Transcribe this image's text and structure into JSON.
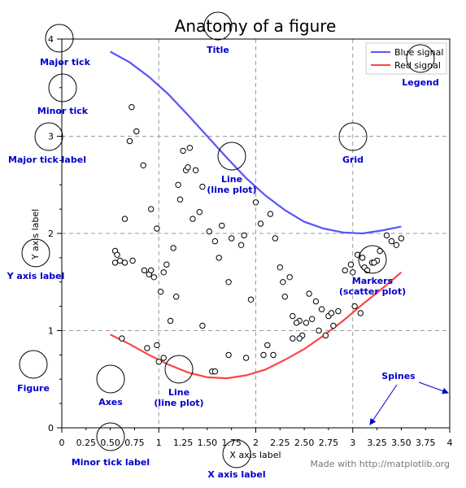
{
  "colors": {
    "blue_signal": "#5555ff",
    "red_signal": "#ff4444",
    "annotation": "#0000cc",
    "grid": "#999999",
    "credit": "#777777"
  },
  "chart_data": {
    "type": "line",
    "title": "Anatomy of a figure",
    "xlabel": "X axis label",
    "ylabel": "Y axis label",
    "xlim": [
      0,
      4
    ],
    "ylim": [
      0,
      4
    ],
    "grid": true,
    "legend_position": "top-right",
    "x_major_ticks": [
      0,
      1,
      2,
      3,
      4
    ],
    "x_major_tick_labels": [
      "0",
      "1",
      "2",
      "3",
      "4"
    ],
    "x_minor_ticks": [
      0.25,
      0.5,
      0.75,
      1.25,
      1.5,
      1.75,
      2.25,
      2.5,
      2.75,
      3.25,
      3.5,
      3.75
    ],
    "x_minor_tick_labels": [
      "0.25",
      "0.50",
      "0.75",
      "1.25",
      "1.50",
      "1.75",
      "2.25",
      "2.50",
      "2.75",
      "3.25",
      "3.50",
      "3.75"
    ],
    "y_major_ticks": [
      0,
      1,
      2,
      3,
      4
    ],
    "y_major_tick_labels": [
      "0",
      "1",
      "2",
      "3",
      "4"
    ],
    "y_minor_ticks": [
      0.25,
      0.5,
      0.75,
      1.25,
      1.5,
      1.75,
      2.25,
      2.5,
      2.75,
      3.25,
      3.5,
      3.75
    ],
    "series": [
      {
        "name": "Blue signal",
        "style": "line",
        "color": "#5555ff",
        "x": [
          0.5,
          0.7,
          0.9,
          1.1,
          1.3,
          1.5,
          1.7,
          1.9,
          2.1,
          2.3,
          2.5,
          2.7,
          2.9,
          3.1,
          3.3,
          3.5
        ],
        "y": [
          3.87,
          3.76,
          3.61,
          3.43,
          3.22,
          3.0,
          2.78,
          2.57,
          2.39,
          2.24,
          2.12,
          2.05,
          2.01,
          2.0,
          2.03,
          2.07
        ]
      },
      {
        "name": "Red signal",
        "style": "line",
        "color": "#ff4444",
        "x": [
          0.5,
          0.7,
          0.9,
          1.1,
          1.3,
          1.5,
          1.7,
          1.9,
          2.1,
          2.3,
          2.5,
          2.7,
          2.9,
          3.1,
          3.3,
          3.5
        ],
        "y": [
          0.96,
          0.86,
          0.75,
          0.65,
          0.57,
          0.52,
          0.51,
          0.54,
          0.6,
          0.7,
          0.81,
          0.95,
          1.1,
          1.27,
          1.43,
          1.6
        ]
      },
      {
        "style": "scatter",
        "x": [
          0.72,
          0.77,
          0.65,
          0.7,
          0.84,
          0.55,
          0.65,
          0.55,
          0.57,
          0.6,
          0.73,
          0.85,
          0.9,
          0.92,
          0.95,
          0.98,
          1.02,
          1.08,
          1.15,
          1.2,
          1.28,
          1.32,
          1.38,
          1.42,
          1.25,
          1.3,
          1.18,
          1.12,
          0.98,
          0.92,
          1.05,
          1.22,
          1.35,
          1.45,
          1.52,
          1.58,
          1.65,
          1.72,
          1.85,
          1.95,
          2.05,
          1.62,
          1.75,
          1.88,
          2.0,
          2.15,
          2.2,
          2.25,
          2.35,
          2.28,
          2.3,
          2.38,
          2.45,
          2.55,
          2.62,
          2.68,
          2.75,
          2.8,
          2.48,
          2.52,
          2.58,
          2.65,
          2.72,
          2.78,
          2.85,
          2.92,
          2.98,
          3.05,
          3.1,
          3.2,
          3.25,
          3.35,
          3.4,
          3.45,
          3.5,
          3.0,
          3.02,
          3.08,
          3.12,
          3.15,
          3.22,
          3.28,
          1.0,
          1.05,
          1.55,
          1.72,
          1.9,
          2.08,
          2.12,
          2.18,
          1.45,
          1.58,
          2.38,
          2.45,
          2.42,
          0.88,
          0.62
        ],
        "y": [
          3.3,
          3.05,
          2.15,
          2.95,
          2.7,
          1.82,
          1.7,
          1.7,
          1.78,
          1.72,
          1.72,
          1.62,
          1.58,
          2.25,
          1.55,
          2.05,
          1.4,
          1.68,
          1.85,
          2.5,
          2.65,
          2.88,
          2.65,
          2.22,
          2.85,
          2.68,
          1.35,
          1.1,
          0.85,
          1.62,
          1.6,
          2.35,
          2.15,
          2.48,
          2.02,
          1.92,
          2.08,
          1.5,
          1.88,
          1.32,
          2.1,
          1.75,
          1.95,
          1.98,
          2.32,
          2.2,
          1.95,
          1.65,
          1.55,
          1.5,
          1.35,
          1.15,
          1.1,
          1.38,
          1.3,
          1.22,
          1.15,
          1.05,
          0.95,
          1.08,
          1.12,
          1.0,
          0.95,
          1.18,
          1.2,
          1.62,
          1.68,
          1.78,
          1.75,
          1.7,
          1.72,
          1.98,
          1.92,
          1.88,
          1.95,
          1.6,
          1.25,
          1.18,
          1.65,
          1.62,
          1.7,
          1.82,
          0.68,
          0.72,
          0.58,
          0.75,
          0.72,
          0.75,
          0.85,
          0.75,
          1.05,
          0.58,
          0.92,
          0.92,
          1.08,
          0.82,
          0.92
        ]
      }
    ]
  },
  "annotations": [
    {
      "id": "title",
      "text": "Title"
    },
    {
      "id": "major-tick",
      "text": "Major tick"
    },
    {
      "id": "minor-tick",
      "text": "Minor tick"
    },
    {
      "id": "major-tick-label",
      "text": "Major tick label"
    },
    {
      "id": "grid",
      "text": "Grid"
    },
    {
      "id": "line-plot-top",
      "text": "Line",
      "text2": "(line plot)"
    },
    {
      "id": "legend",
      "text": "Legend"
    },
    {
      "id": "y-axis-label",
      "text": "Y axis label"
    },
    {
      "id": "markers",
      "text": "Markers",
      "text2": "(scatter plot)"
    },
    {
      "id": "figure",
      "text": "Figure"
    },
    {
      "id": "axes",
      "text": "Axes"
    },
    {
      "id": "line-plot-bottom",
      "text": "Line",
      "text2": "(line plot)"
    },
    {
      "id": "spines",
      "text": "Spines"
    },
    {
      "id": "minor-tick-label",
      "text": "Minor tick label"
    },
    {
      "id": "x-axis-label",
      "text": "X axis label"
    }
  ],
  "credit": "Made with http://matplotlib.org"
}
